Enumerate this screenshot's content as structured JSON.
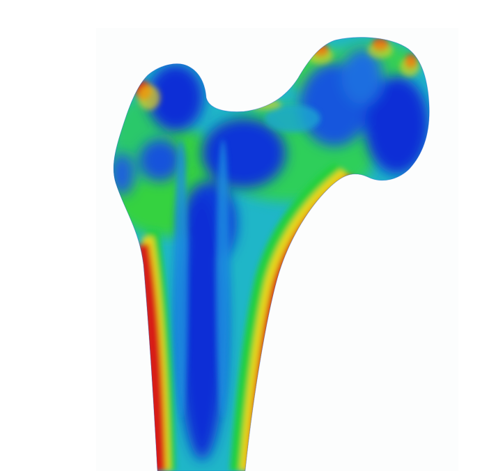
{
  "figure": {
    "colors": {
      "background": "#ffffff",
      "low": "#0a2fd6",
      "low_mid": "#1f8fe0",
      "mid": "#18c8b0",
      "mid_high": "#2fd23a",
      "high_mid": "#e8d61a",
      "high": "#d81f14"
    }
  }
}
